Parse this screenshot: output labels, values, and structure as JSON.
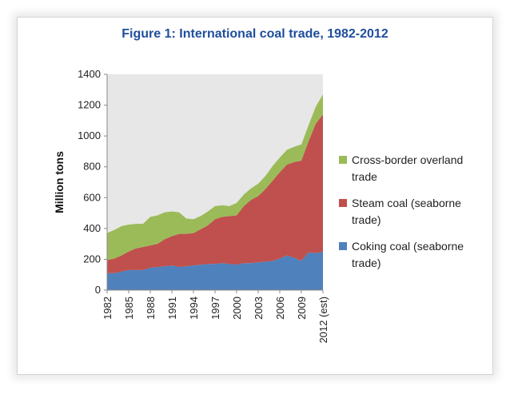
{
  "chart_data": {
    "type": "area",
    "stacked": true,
    "title": "Figure 1: International coal trade, 1982-2012",
    "ylabel": "Million tons",
    "xlabel": "",
    "ylim": [
      0,
      1400
    ],
    "yticks": [
      0,
      200,
      400,
      600,
      800,
      1000,
      1200,
      1400
    ],
    "x": [
      "1982",
      "1983",
      "1984",
      "1985",
      "1986",
      "1987",
      "1988",
      "1989",
      "1990",
      "1991",
      "1992",
      "1993",
      "1994",
      "1995",
      "1996",
      "1997",
      "1998",
      "1999",
      "2000",
      "2001",
      "2002",
      "2003",
      "2004",
      "2005",
      "2006",
      "2007",
      "2008",
      "2009",
      "2010",
      "2011",
      "2012 (est)"
    ],
    "xtick_labels": [
      "1982",
      "1985",
      "1988",
      "1991",
      "1994",
      "1997",
      "2000",
      "2003",
      "2006",
      "2009",
      "2012 (est)"
    ],
    "grid": false,
    "legend_position": "right",
    "series": [
      {
        "name": "Coking coal (seaborne trade)",
        "color": "#4f81bd",
        "values": [
          110,
          110,
          120,
          130,
          130,
          130,
          145,
          150,
          155,
          160,
          150,
          155,
          160,
          165,
          170,
          170,
          175,
          170,
          165,
          175,
          175,
          180,
          185,
          190,
          205,
          225,
          210,
          190,
          245,
          240,
          250
        ]
      },
      {
        "name": "Steam coal (seaborne trade)",
        "color": "#c0504d",
        "values": [
          85,
          95,
          105,
          120,
          140,
          150,
          145,
          150,
          175,
          190,
          215,
          210,
          210,
          230,
          250,
          290,
          300,
          310,
          320,
          370,
          410,
          430,
          470,
          520,
          560,
          590,
          620,
          650,
          720,
          840,
          890
        ]
      },
      {
        "name": "Cross-border overland trade",
        "color": "#9bbb59",
        "values": [
          175,
          185,
          190,
          175,
          160,
          150,
          185,
          185,
          175,
          160,
          140,
          100,
          90,
          85,
          90,
          85,
          75,
          65,
          80,
          75,
          75,
          80,
          85,
          95,
          95,
          95,
          100,
          105,
          105,
          110,
          130
        ]
      }
    ]
  }
}
